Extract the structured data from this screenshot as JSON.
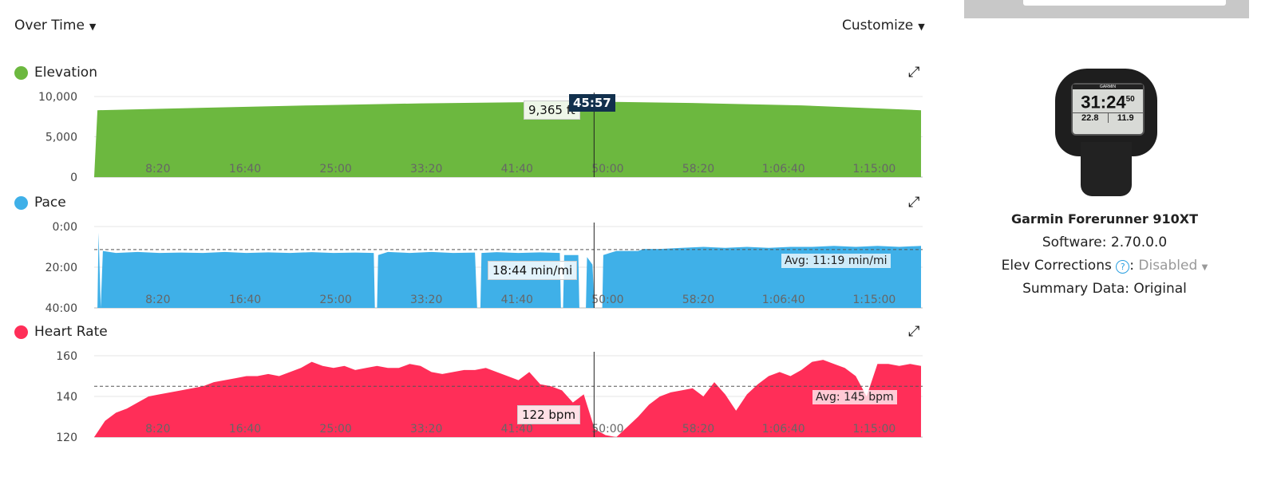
{
  "header": {
    "view_select": "Over Time",
    "customize": "Customize"
  },
  "colors": {
    "elevation": "#6cb83f",
    "pace": "#3fb0e8",
    "hr": "#ff2e58"
  },
  "chart_data": [
    {
      "type": "area",
      "title": "Elevation",
      "x_unit": "minutes",
      "x_ticks": [
        "8:20",
        "16:40",
        "25:00",
        "33:20",
        "41:40",
        "50:00",
        "58:20",
        "1:06:40",
        "1:15:00"
      ],
      "y_ticks": [
        "10,000",
        "5,000",
        "0"
      ],
      "ylim": [
        0,
        10000
      ],
      "points": [
        [
          0,
          0
        ],
        [
          0.3,
          8300
        ],
        [
          10,
          8600
        ],
        [
          20,
          8900
        ],
        [
          30,
          9150
        ],
        [
          40,
          9300
        ],
        [
          45.95,
          9365
        ],
        [
          55,
          9200
        ],
        [
          65,
          8900
        ],
        [
          76,
          8300
        ]
      ],
      "tooltip": "9,365 ft",
      "cursor_time": "45:57"
    },
    {
      "type": "area",
      "title": "Pace",
      "x_unit": "minutes",
      "x_ticks": [
        "8:20",
        "16:40",
        "25:00",
        "33:20",
        "41:40",
        "50:00",
        "58:20",
        "1:06:40",
        "1:15:00"
      ],
      "y_ticks": [
        "0:00",
        "20:00",
        "40:00"
      ],
      "ylim": [
        0,
        40
      ],
      "inverted": true,
      "avg": 11.32,
      "avg_label": "Avg: 11:19 min/mi",
      "tooltip": "18:44 min/mi",
      "points": [
        [
          0,
          40
        ],
        [
          0.3,
          40
        ],
        [
          0.4,
          3
        ],
        [
          0.6,
          40
        ],
        [
          0.8,
          12
        ],
        [
          2,
          13
        ],
        [
          4,
          12.5
        ],
        [
          6,
          13
        ],
        [
          8,
          12.8
        ],
        [
          10,
          13
        ],
        [
          12,
          12.5
        ],
        [
          14,
          13
        ],
        [
          16,
          12.7
        ],
        [
          18,
          13
        ],
        [
          20,
          12.6
        ],
        [
          22,
          13
        ],
        [
          24,
          12.8
        ],
        [
          25.7,
          13
        ],
        [
          25.8,
          40
        ],
        [
          26,
          40
        ],
        [
          26.1,
          14
        ],
        [
          27,
          12.5
        ],
        [
          29,
          13
        ],
        [
          31,
          12.5
        ],
        [
          33,
          13
        ],
        [
          35,
          12.8
        ],
        [
          35.2,
          40
        ],
        [
          35.5,
          40
        ],
        [
          35.6,
          13
        ],
        [
          37,
          12.6
        ],
        [
          39,
          13
        ],
        [
          41,
          12.7
        ],
        [
          42.8,
          13
        ],
        [
          42.9,
          40
        ],
        [
          43.1,
          40
        ],
        [
          43.2,
          14
        ],
        [
          44.5,
          14
        ],
        [
          44.6,
          40
        ],
        [
          45.2,
          40
        ],
        [
          45.3,
          15
        ],
        [
          45.8,
          18.7
        ],
        [
          46,
          40
        ],
        [
          46.7,
          40
        ],
        [
          46.8,
          14
        ],
        [
          48,
          12
        ],
        [
          50,
          12
        ],
        [
          50.5,
          11
        ],
        [
          52,
          11
        ],
        [
          54,
          10.5
        ],
        [
          56,
          10
        ],
        [
          58,
          10.5
        ],
        [
          60,
          10
        ],
        [
          62,
          10.5
        ],
        [
          64,
          10
        ],
        [
          66,
          10
        ],
        [
          68,
          9.5
        ],
        [
          70,
          10
        ],
        [
          72,
          9.5
        ],
        [
          74,
          10
        ],
        [
          76,
          9.5
        ]
      ]
    },
    {
      "type": "area",
      "title": "Heart Rate",
      "x_unit": "minutes",
      "x_ticks": [
        "8:20",
        "16:40",
        "25:00",
        "33:20",
        "41:40",
        "50:00",
        "58:20",
        "1:06:40",
        "1:15:00"
      ],
      "y_ticks": [
        "160",
        "140",
        "120"
      ],
      "ylim": [
        120,
        160
      ],
      "avg": 145,
      "avg_label": "Avg: 145 bpm",
      "tooltip": "122 bpm",
      "values_per_minute": [
        120,
        128,
        132,
        134,
        137,
        140,
        141,
        142,
        143,
        144,
        145,
        147,
        148,
        149,
        150,
        150,
        151,
        150,
        152,
        154,
        157,
        155,
        154,
        155,
        153,
        154,
        155,
        154,
        154,
        156,
        155,
        152,
        151,
        152,
        153,
        153,
        154,
        152,
        150,
        148,
        152,
        146,
        145,
        143,
        137,
        141,
        124,
        121,
        120,
        125,
        130,
        136,
        140,
        142,
        143,
        144,
        140,
        147,
        141,
        133,
        141,
        146,
        150,
        152,
        150,
        153,
        157,
        158,
        156,
        154,
        150,
        140,
        156,
        156,
        155,
        156,
        155
      ]
    }
  ],
  "device": {
    "name": "Garmin Forerunner 910XT",
    "software": "Software: 2.70.0.0",
    "elev_label": "Elev Corrections",
    "elev_value": "Disabled",
    "summary": "Summary Data: Original",
    "watch_brand": "GARMIN",
    "watch_time": "31:24",
    "watch_sec": "50",
    "watch_speed": "22.8",
    "watch_dist": "11.9"
  }
}
